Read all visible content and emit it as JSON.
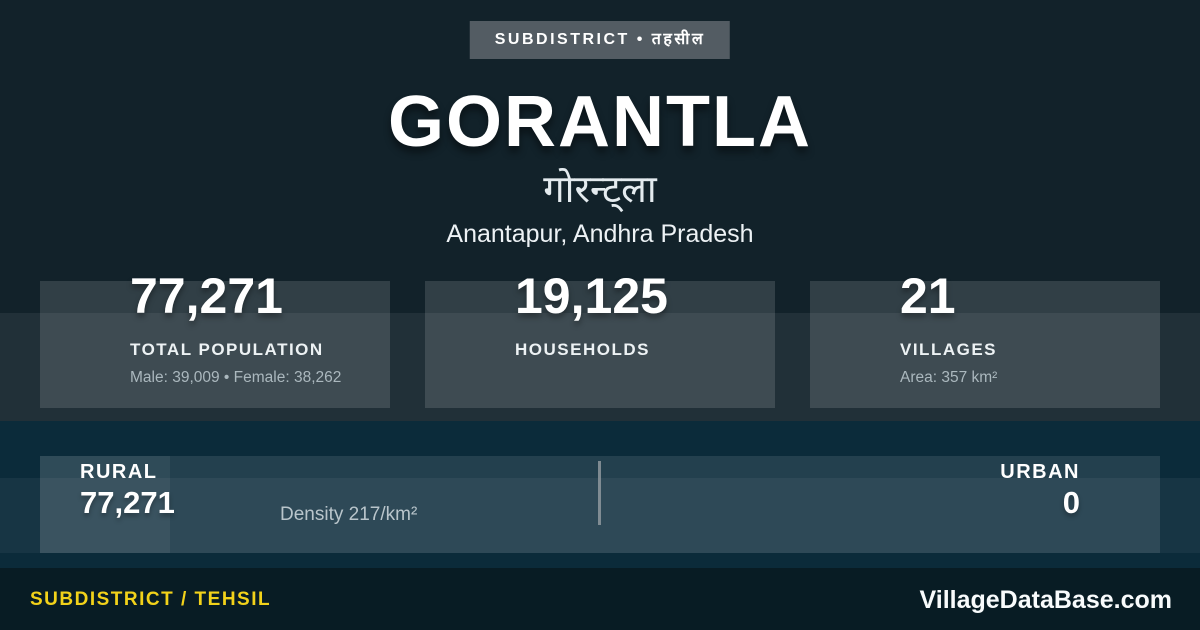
{
  "badge": {
    "label": "SUBDISTRICT • तहसील"
  },
  "header": {
    "title": "GORANTLA",
    "native_title": "गोरन्ट्ला",
    "location": "Anantapur, Andhra Pradesh"
  },
  "stats": [
    {
      "value": "77,271",
      "label": "TOTAL POPULATION",
      "detail": "Male: 39,009 • Female: 38,262"
    },
    {
      "value": "19,125",
      "label": "HOUSEHOLDS",
      "detail": ""
    },
    {
      "value": "21",
      "label": "VILLAGES",
      "detail": "Area: 357 km²"
    }
  ],
  "breakdown": {
    "rural": {
      "label": "RURAL",
      "value": "77,271"
    },
    "density": "Density 217/km²",
    "urban": {
      "label": "URBAN",
      "value": "0"
    }
  },
  "footer": {
    "type_label": "SUBDISTRICT / TEHSIL",
    "brand": "VillageDataBase.com"
  },
  "colors": {
    "background": "#12222A",
    "section_blue": "#0B2B3A",
    "footer_background": "#081C24",
    "badge_background": "#535C63",
    "accent_yellow": "#F2D21A",
    "text_primary": "#FFFFFF",
    "text_muted": "#ABB8BE"
  }
}
